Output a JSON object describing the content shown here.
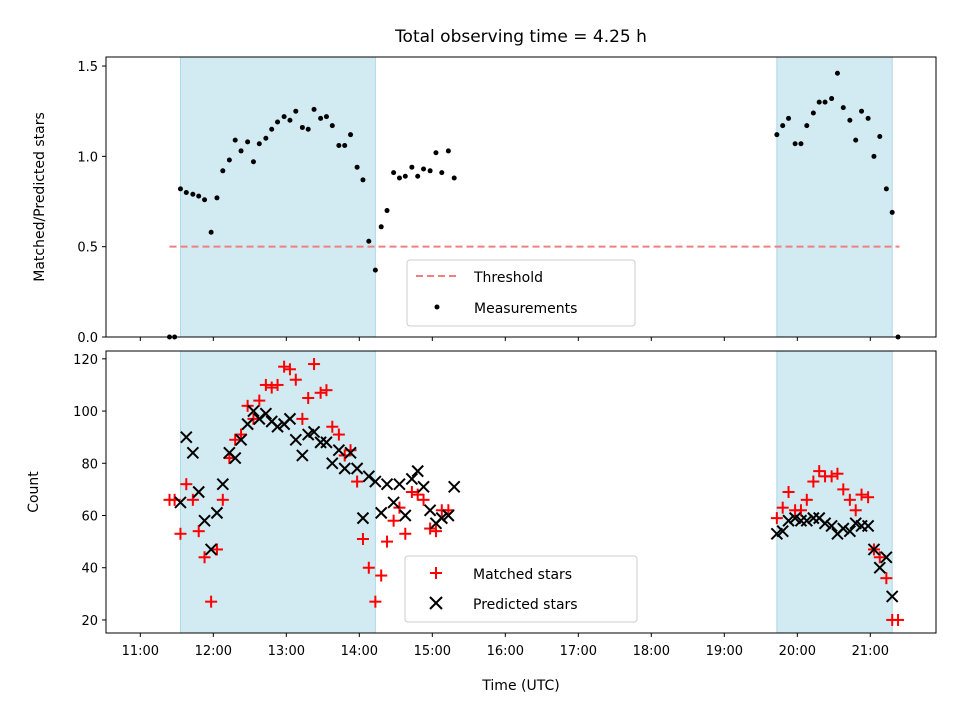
{
  "chart_data": {
    "title": "Total observing time = 4.25 h",
    "xlabel": "Time (UTC)",
    "x_ticks": [
      "11:00",
      "12:00",
      "13:00",
      "14:00",
      "15:00",
      "16:00",
      "17:00",
      "18:00",
      "19:00",
      "20:00",
      "21:00"
    ],
    "x_range_hours": [
      10.53,
      21.9
    ],
    "shaded_intervals_hours": [
      [
        11.55,
        14.22
      ],
      [
        19.72,
        21.3
      ]
    ],
    "shade_color": "#add8e6",
    "panels": [
      {
        "type": "scatter",
        "ylabel": "Matched/Predicted stars",
        "ylim": [
          0,
          1.55
        ],
        "yticks": [
          "0.0",
          "0.5",
          "1.0",
          "1.5"
        ],
        "ytick_values": [
          0,
          0.5,
          1.0,
          1.5
        ],
        "threshold": {
          "name": "Threshold",
          "value": 0.5,
          "x_range_hours": [
            11.4,
            21.4
          ],
          "color": "#f08080"
        },
        "series": [
          {
            "name": "Measurements",
            "color": "#000000",
            "points": [
              [
                11.4,
                0.0
              ],
              [
                11.47,
                0.0
              ],
              [
                11.55,
                0.82
              ],
              [
                11.63,
                0.8
              ],
              [
                11.72,
                0.79
              ],
              [
                11.8,
                0.78
              ],
              [
                11.88,
                0.76
              ],
              [
                11.97,
                0.58
              ],
              [
                12.05,
                0.77
              ],
              [
                12.13,
                0.92
              ],
              [
                12.22,
                0.98
              ],
              [
                12.3,
                1.09
              ],
              [
                12.38,
                1.03
              ],
              [
                12.47,
                1.08
              ],
              [
                12.55,
                0.97
              ],
              [
                12.63,
                1.07
              ],
              [
                12.72,
                1.1
              ],
              [
                12.8,
                1.15
              ],
              [
                12.88,
                1.19
              ],
              [
                12.97,
                1.22
              ],
              [
                13.05,
                1.2
              ],
              [
                13.13,
                1.25
              ],
              [
                13.22,
                1.16
              ],
              [
                13.3,
                1.15
              ],
              [
                13.38,
                1.26
              ],
              [
                13.47,
                1.21
              ],
              [
                13.55,
                1.22
              ],
              [
                13.63,
                1.17
              ],
              [
                13.72,
                1.06
              ],
              [
                13.8,
                1.06
              ],
              [
                13.88,
                1.12
              ],
              [
                13.97,
                0.94
              ],
              [
                14.05,
                0.87
              ],
              [
                14.13,
                0.53
              ],
              [
                14.22,
                0.37
              ],
              [
                14.3,
                0.61
              ],
              [
                14.38,
                0.7
              ],
              [
                14.47,
                0.91
              ],
              [
                14.55,
                0.88
              ],
              [
                14.63,
                0.89
              ],
              [
                14.72,
                0.94
              ],
              [
                14.8,
                0.89
              ],
              [
                14.88,
                0.93
              ],
              [
                14.97,
                0.92
              ],
              [
                15.05,
                1.02
              ],
              [
                15.13,
                0.91
              ],
              [
                15.22,
                1.03
              ],
              [
                15.3,
                0.88
              ],
              [
                19.72,
                1.12
              ],
              [
                19.8,
                1.17
              ],
              [
                19.88,
                1.21
              ],
              [
                19.97,
                1.07
              ],
              [
                20.05,
                1.07
              ],
              [
                20.13,
                1.17
              ],
              [
                20.22,
                1.24
              ],
              [
                20.3,
                1.3
              ],
              [
                20.38,
                1.3
              ],
              [
                20.47,
                1.32
              ],
              [
                20.55,
                1.46
              ],
              [
                20.63,
                1.27
              ],
              [
                20.72,
                1.2
              ],
              [
                20.8,
                1.09
              ],
              [
                20.88,
                1.25
              ],
              [
                20.97,
                1.21
              ],
              [
                21.05,
                1.0
              ],
              [
                21.13,
                1.11
              ],
              [
                21.22,
                0.82
              ],
              [
                21.3,
                0.69
              ],
              [
                21.38,
                0.0
              ]
            ]
          }
        ],
        "legend": [
          "Threshold",
          "Measurements"
        ],
        "legend_loc": "lower center"
      },
      {
        "type": "scatter",
        "ylabel": "Count",
        "ylim": [
          15,
          123
        ],
        "yticks": [
          "20",
          "40",
          "60",
          "80",
          "100",
          "120"
        ],
        "ytick_values": [
          20,
          40,
          60,
          80,
          100,
          120
        ],
        "series": [
          {
            "name": "Matched stars",
            "marker": "+",
            "color": "#ff0000",
            "points": [
              [
                11.4,
                66
              ],
              [
                11.47,
                66
              ],
              [
                11.55,
                53
              ],
              [
                11.63,
                72
              ],
              [
                11.72,
                66
              ],
              [
                11.8,
                54
              ],
              [
                11.88,
                44
              ],
              [
                11.97,
                27
              ],
              [
                12.05,
                47
              ],
              [
                12.13,
                66
              ],
              [
                12.22,
                82
              ],
              [
                12.3,
                89
              ],
              [
                12.38,
                91
              ],
              [
                12.47,
                102
              ],
              [
                12.55,
                97
              ],
              [
                12.63,
                104
              ],
              [
                12.72,
                110
              ],
              [
                12.8,
                109
              ],
              [
                12.88,
                110
              ],
              [
                12.97,
                117
              ],
              [
                13.05,
                116
              ],
              [
                13.13,
                112
              ],
              [
                13.22,
                97
              ],
              [
                13.3,
                105
              ],
              [
                13.38,
                118
              ],
              [
                13.47,
                107
              ],
              [
                13.55,
                108
              ],
              [
                13.63,
                94
              ],
              [
                13.72,
                91
              ],
              [
                13.8,
                83
              ],
              [
                13.88,
                85
              ],
              [
                13.97,
                73
              ],
              [
                14.05,
                51
              ],
              [
                14.13,
                40
              ],
              [
                14.22,
                27
              ],
              [
                14.3,
                37
              ],
              [
                14.38,
                50
              ],
              [
                14.47,
                58
              ],
              [
                14.55,
                63
              ],
              [
                14.63,
                53
              ],
              [
                14.72,
                69
              ],
              [
                14.8,
                68
              ],
              [
                14.88,
                66
              ],
              [
                14.97,
                55
              ],
              [
                15.05,
                54
              ],
              [
                15.13,
                62
              ],
              [
                15.22,
                62
              ],
              [
                19.72,
                59
              ],
              [
                19.8,
                63
              ],
              [
                19.88,
                69
              ],
              [
                19.97,
                62
              ],
              [
                20.05,
                62
              ],
              [
                20.13,
                66
              ],
              [
                20.22,
                73
              ],
              [
                20.3,
                77
              ],
              [
                20.38,
                75
              ],
              [
                20.47,
                75
              ],
              [
                20.55,
                76
              ],
              [
                20.63,
                70
              ],
              [
                20.72,
                66
              ],
              [
                20.8,
                62
              ],
              [
                20.88,
                68
              ],
              [
                20.97,
                67
              ],
              [
                21.05,
                47
              ],
              [
                21.13,
                44
              ],
              [
                21.22,
                36
              ],
              [
                21.3,
                20
              ],
              [
                21.38,
                20
              ]
            ]
          },
          {
            "name": "Predicted stars",
            "marker": "x",
            "color": "#000000",
            "points": [
              [
                11.55,
                65
              ],
              [
                11.63,
                90
              ],
              [
                11.72,
                84
              ],
              [
                11.8,
                69
              ],
              [
                11.88,
                58
              ],
              [
                11.97,
                47
              ],
              [
                12.05,
                61
              ],
              [
                12.13,
                72
              ],
              [
                12.22,
                84
              ],
              [
                12.3,
                82
              ],
              [
                12.38,
                89
              ],
              [
                12.47,
                95
              ],
              [
                12.55,
                100
              ],
              [
                12.63,
                97
              ],
              [
                12.72,
                99
              ],
              [
                12.8,
                96
              ],
              [
                12.88,
                94
              ],
              [
                12.97,
                95
              ],
              [
                13.05,
                97
              ],
              [
                13.13,
                89
              ],
              [
                13.22,
                83
              ],
              [
                13.3,
                91
              ],
              [
                13.38,
                92
              ],
              [
                13.47,
                88
              ],
              [
                13.55,
                88
              ],
              [
                13.63,
                80
              ],
              [
                13.72,
                85
              ],
              [
                13.8,
                78
              ],
              [
                13.88,
                84
              ],
              [
                13.97,
                78
              ],
              [
                14.05,
                59
              ],
              [
                14.13,
                75
              ],
              [
                14.22,
                73
              ],
              [
                14.3,
                61
              ],
              [
                14.38,
                72
              ],
              [
                14.47,
                65
              ],
              [
                14.55,
                72
              ],
              [
                14.63,
                60
              ],
              [
                14.72,
                74
              ],
              [
                14.8,
                77
              ],
              [
                14.88,
                71
              ],
              [
                14.97,
                62
              ],
              [
                15.05,
                57
              ],
              [
                15.13,
                59
              ],
              [
                15.22,
                60
              ],
              [
                15.3,
                71
              ],
              [
                19.72,
                53
              ],
              [
                19.8,
                54
              ],
              [
                19.88,
                58
              ],
              [
                19.97,
                59
              ],
              [
                20.05,
                58
              ],
              [
                20.13,
                58
              ],
              [
                20.22,
                59
              ],
              [
                20.3,
                59
              ],
              [
                20.38,
                57
              ],
              [
                20.47,
                56
              ],
              [
                20.55,
                53
              ],
              [
                20.63,
                55
              ],
              [
                20.72,
                54
              ],
              [
                20.8,
                57
              ],
              [
                20.88,
                56
              ],
              [
                20.97,
                56
              ],
              [
                21.05,
                47
              ],
              [
                21.13,
                40
              ],
              [
                21.22,
                44
              ],
              [
                21.3,
                29
              ]
            ]
          }
        ],
        "legend": [
          "Matched stars",
          "Predicted stars"
        ],
        "legend_loc": "lower center"
      }
    ]
  }
}
